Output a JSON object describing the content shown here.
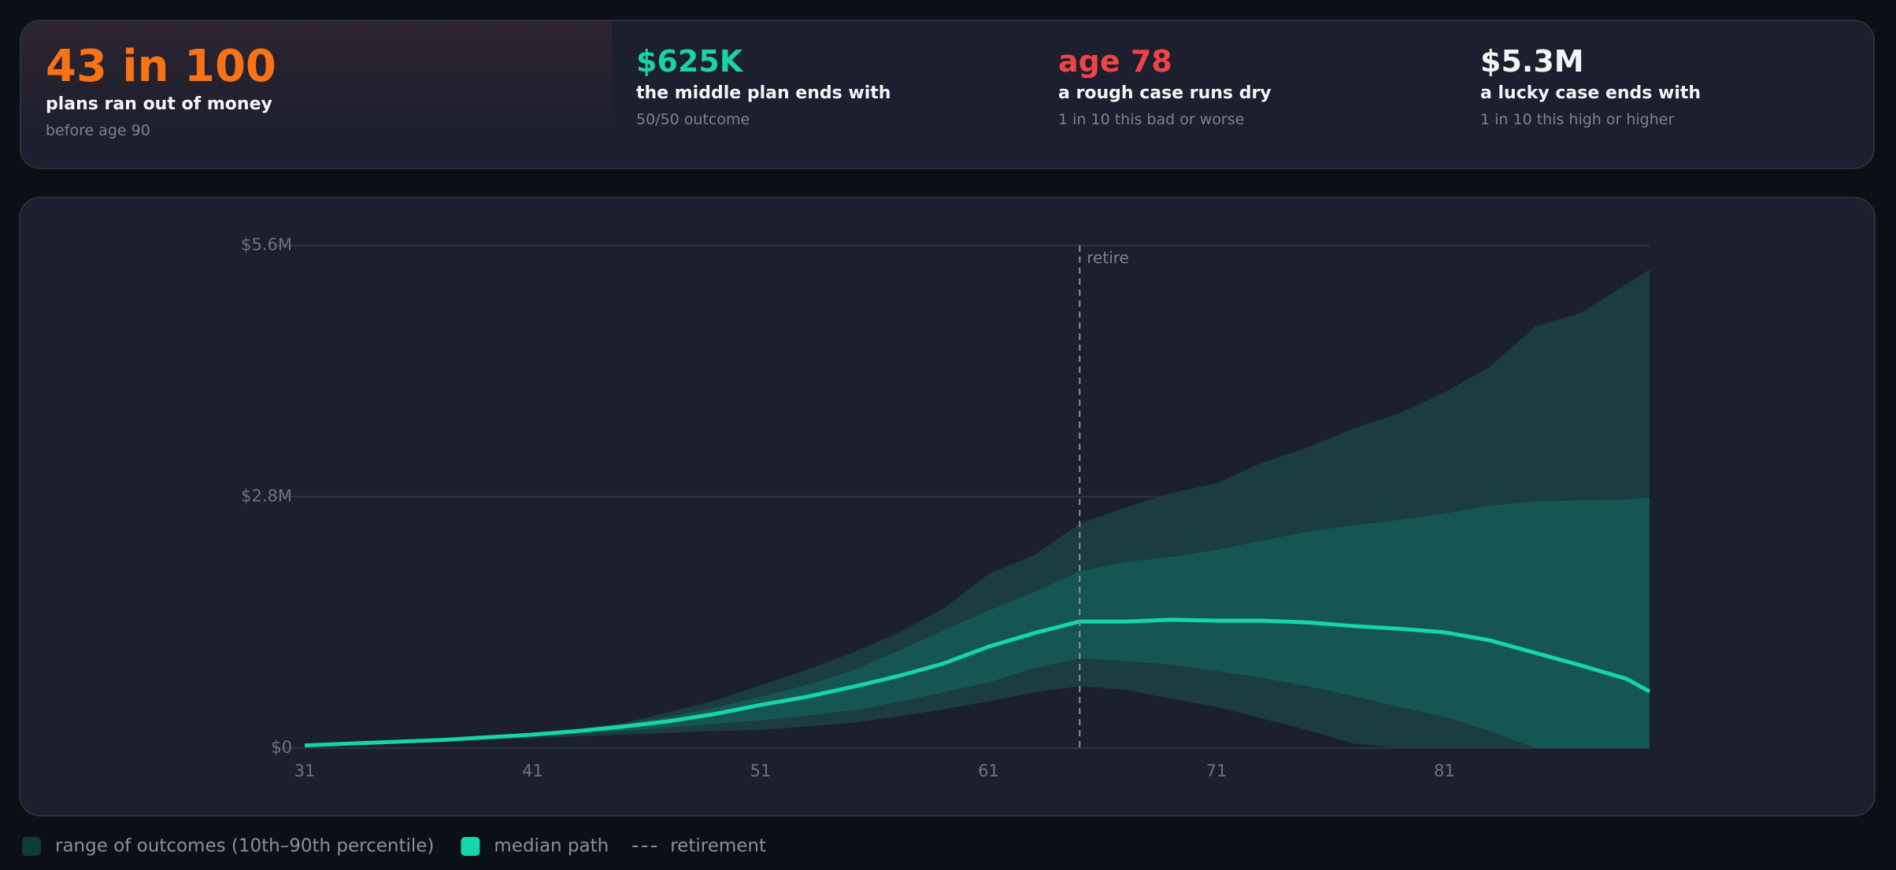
{
  "stats": [
    {
      "value": "43 in 100",
      "label": "plans ran out of money",
      "note": "before age 90",
      "color": "#f97316"
    },
    {
      "value": "$625K",
      "label": "the middle plan ends with",
      "note": "50/50 outcome",
      "color": "#19d3a4"
    },
    {
      "value": "age 78",
      "label": "a rough case runs dry",
      "note": "1 in 10 this bad or worse",
      "color": "#ef4444"
    },
    {
      "value": "$5.3M",
      "label": "a lucky case ends with",
      "note": "1 in 10 this high or higher",
      "color": "#f3f4f6"
    }
  ],
  "chart_data": {
    "type": "fan",
    "x": [
      31,
      33,
      35,
      37,
      39,
      41,
      43,
      45,
      47,
      49,
      51,
      53,
      55,
      57,
      59,
      61,
      63,
      65,
      67,
      69,
      71,
      73,
      75,
      77,
      79,
      81,
      83,
      85,
      87,
      89,
      90
    ],
    "bands": [
      {
        "name": "range of outcomes (10th–90th percentile)",
        "color": "#1b3c40",
        "lower": [
          0.02,
          0.04,
          0.05,
          0.07,
          0.09,
          0.11,
          0.13,
          0.15,
          0.17,
          0.19,
          0.2,
          0.24,
          0.28,
          0.35,
          0.43,
          0.52,
          0.62,
          0.69,
          0.65,
          0.55,
          0.46,
          0.33,
          0.2,
          0.05,
          0,
          0,
          0,
          0,
          0,
          0,
          0
        ],
        "upper": [
          0.03,
          0.05,
          0.08,
          0.1,
          0.13,
          0.17,
          0.22,
          0.28,
          0.4,
          0.53,
          0.7,
          0.87,
          1.06,
          1.28,
          1.55,
          1.94,
          2.15,
          2.5,
          2.68,
          2.84,
          2.95,
          3.18,
          3.35,
          3.56,
          3.73,
          3.96,
          4.25,
          4.7,
          4.85,
          5.17,
          5.33
        ]
      },
      {
        "color": "#165652",
        "lower": [
          0.02,
          0.04,
          0.06,
          0.08,
          0.1,
          0.13,
          0.16,
          0.19,
          0.23,
          0.27,
          0.31,
          0.36,
          0.42,
          0.51,
          0.62,
          0.73,
          0.89,
          1.0,
          0.97,
          0.93,
          0.86,
          0.78,
          0.69,
          0.58,
          0.46,
          0.35,
          0.19,
          0,
          0,
          0,
          0
        ],
        "upper": [
          0.03,
          0.05,
          0.07,
          0.09,
          0.12,
          0.16,
          0.21,
          0.27,
          0.35,
          0.45,
          0.57,
          0.7,
          0.86,
          1.08,
          1.31,
          1.53,
          1.74,
          1.97,
          2.07,
          2.13,
          2.21,
          2.31,
          2.41,
          2.48,
          2.54,
          2.61,
          2.7,
          2.75,
          2.76,
          2.77,
          2.79
        ]
      }
    ],
    "series": [
      {
        "name": "median path",
        "color": "#14d6a6",
        "values": [
          0.03,
          0.05,
          0.07,
          0.09,
          0.12,
          0.15,
          0.19,
          0.24,
          0.3,
          0.38,
          0.48,
          0.57,
          0.68,
          0.8,
          0.94,
          1.13,
          1.28,
          1.41,
          1.41,
          1.43,
          1.42,
          1.42,
          1.4,
          1.36,
          1.33,
          1.29,
          1.2,
          1.06,
          0.92,
          0.77,
          0.63
        ]
      }
    ],
    "marker": {
      "x": 65,
      "label": "retire",
      "legend": "retirement"
    },
    "xlim": [
      31,
      90
    ],
    "xticks": [
      31,
      41,
      51,
      61,
      71,
      81
    ],
    "ylim": [
      0,
      5.6
    ],
    "yticks": [
      {
        "value": 0,
        "label": "$0"
      },
      {
        "value": 2.8,
        "label": "$2.8M"
      },
      {
        "value": 5.6,
        "label": "$5.6M"
      }
    ],
    "grid": true
  }
}
